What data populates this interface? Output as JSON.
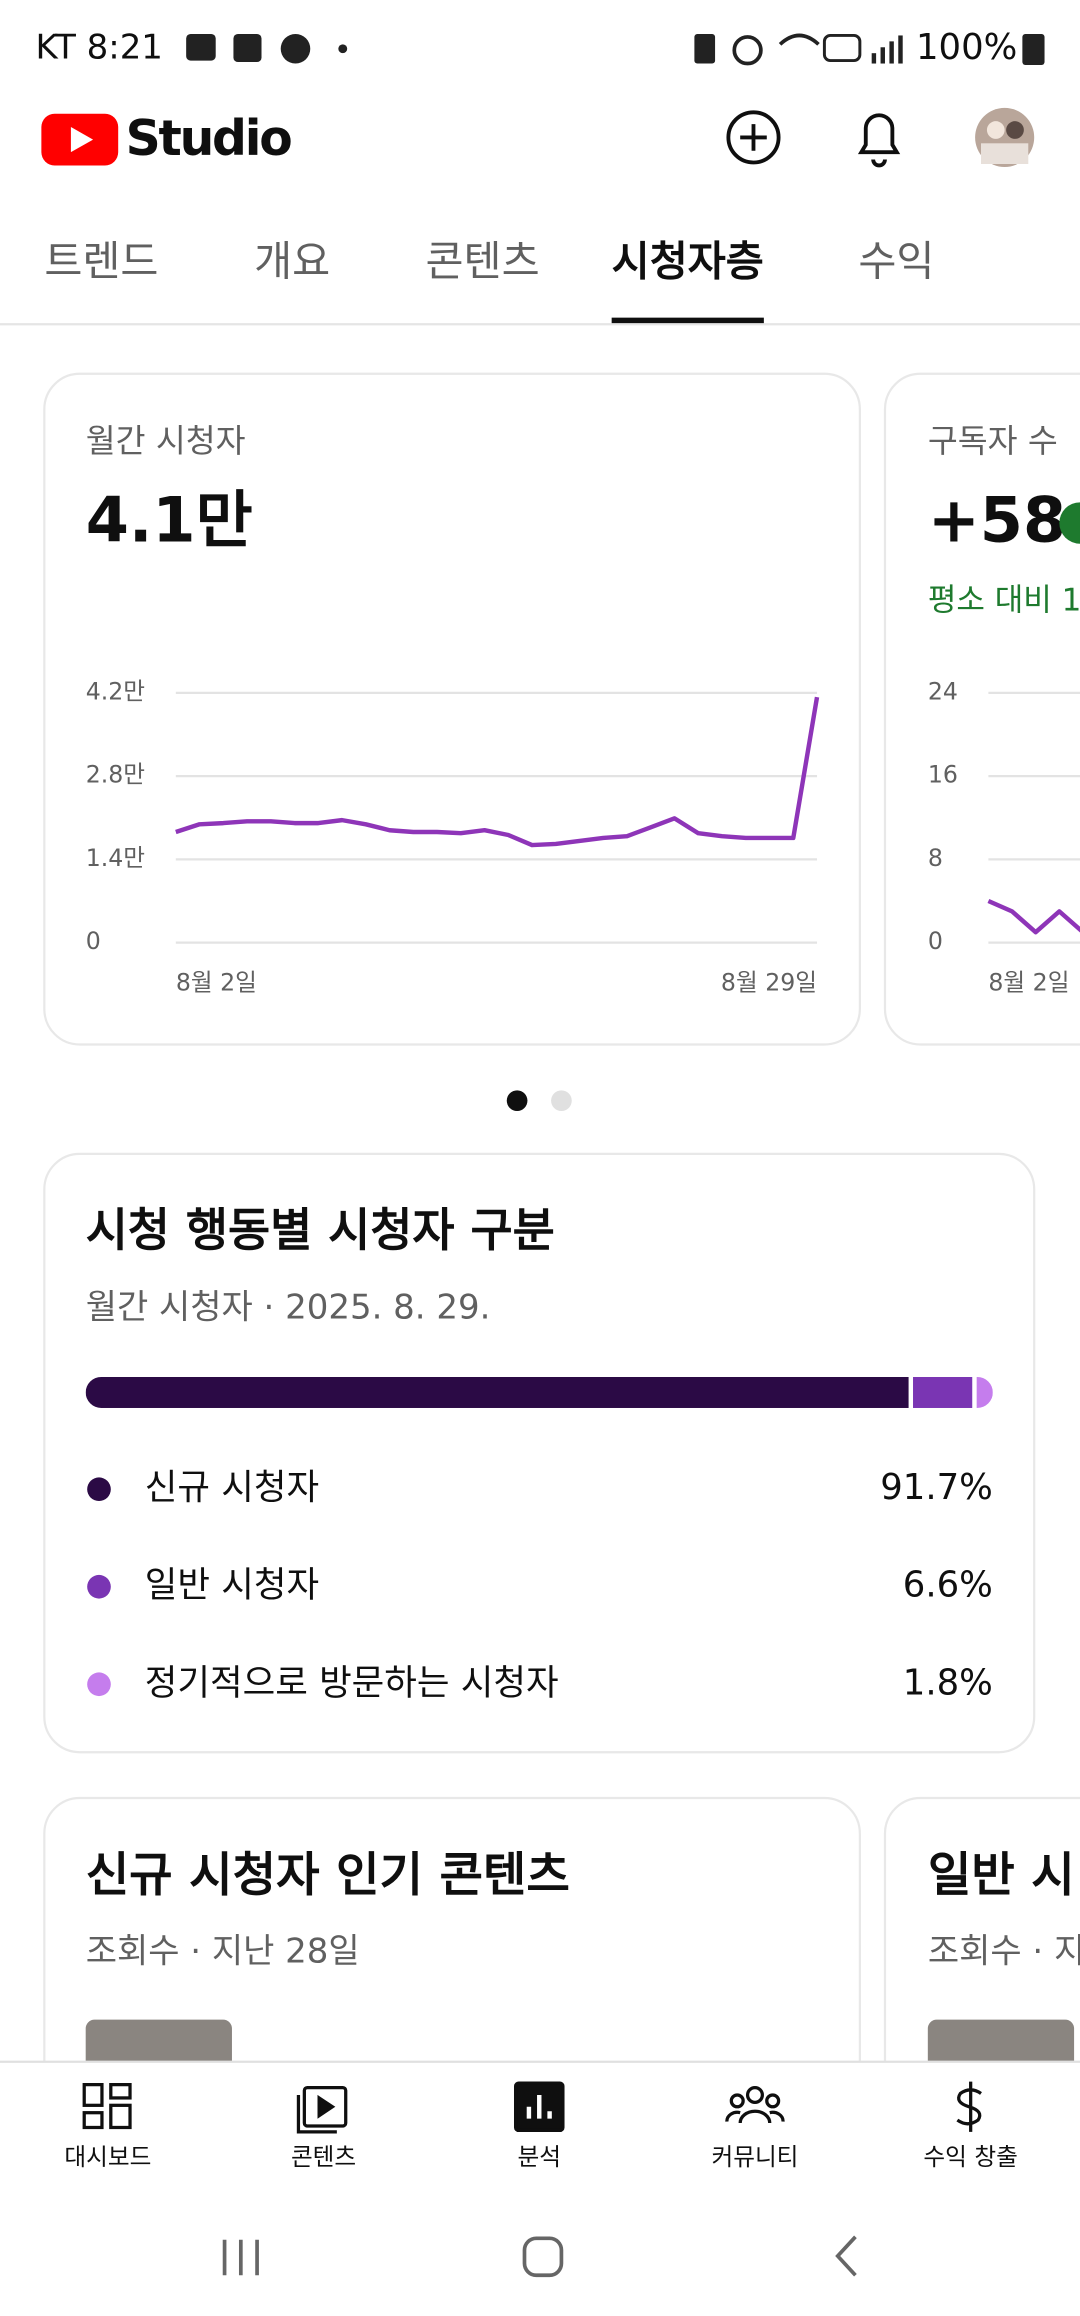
{
  "status_bar": {
    "time": "KT 8:21",
    "battery": "100%"
  },
  "header": {
    "title": "Studio"
  },
  "tabs": {
    "items": [
      "트렌드",
      "개요",
      "콘텐츠",
      "시청자층",
      "수익"
    ],
    "active": 3
  },
  "metric_cards": [
    {
      "title": "월간 시청자",
      "value": "4.1만",
      "chart_data": {
        "type": "line",
        "color": "#8e35b8",
        "categories": [
          "8월 2일",
          null,
          null,
          null,
          null,
          null,
          null,
          null,
          null,
          null,
          null,
          null,
          null,
          null,
          null,
          null,
          null,
          null,
          null,
          null,
          null,
          null,
          null,
          null,
          null,
          null,
          null,
          "8월 29일"
        ],
        "values": [
          18600,
          19900,
          20100,
          20400,
          20400,
          20100,
          20100,
          20600,
          19900,
          18900,
          18600,
          18600,
          18400,
          18900,
          18100,
          16400,
          16600,
          17100,
          17600,
          17900,
          19400,
          20900,
          18400,
          17900,
          17600,
          17600,
          17600,
          41300
        ],
        "ylim": [
          0,
          42000
        ],
        "yticks": [
          0,
          {
            "value": 14000,
            "label": "1.4만"
          },
          {
            "value": 28000,
            "label": "2.8만"
          },
          {
            "value": 42000,
            "label": "4.2만"
          }
        ],
        "grid": true
      }
    },
    {
      "title": "구독자 수",
      "value": "+58",
      "note": "평소 대비 1",
      "chart_data": {
        "type": "line",
        "color": "#8e35b8",
        "categories": [
          "8월 2일",
          null,
          null,
          null,
          null
        ],
        "values": [
          4,
          3,
          1,
          3,
          1
        ],
        "ylim": [
          0,
          24
        ],
        "yticks": [
          0,
          8,
          16,
          24
        ],
        "grid": true
      }
    }
  ],
  "breakdown": {
    "title": "시청 행동별 시청자 구분",
    "subtitle": "월간 시청자 · 2025. 8. 29.",
    "chart_data": {
      "type": "stacked-bar",
      "categories": [
        "신규 시청자",
        "일반 시청자",
        "정기적으로 방문하는 시청자"
      ],
      "values": [
        91.7,
        6.6,
        1.8
      ],
      "value_labels": [
        "91.7%",
        "6.6%",
        "1.8%"
      ],
      "colors": [
        "#2b0a45",
        "#7a35b3",
        "#c57ded"
      ]
    }
  },
  "content_cards": [
    {
      "title": "신규 시청자 인기 콘텐츠",
      "subtitle": "조회수 · 지난 28일"
    },
    {
      "title": "일반 시",
      "subtitle": "조회수 · 지"
    }
  ],
  "bottom_nav": [
    "대시보드",
    "콘텐츠",
    "분석",
    "커뮤니티",
    "수익 창출"
  ]
}
